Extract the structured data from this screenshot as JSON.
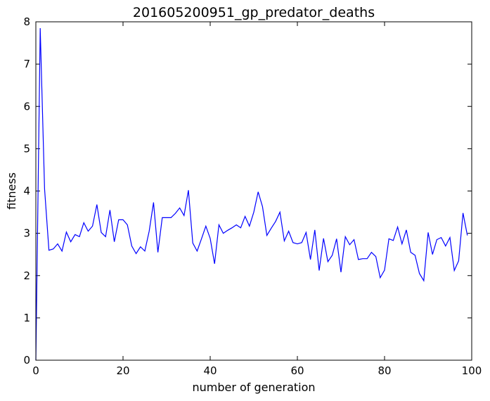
{
  "chart_data": {
    "type": "line",
    "title": "201605200951_gp_predator_deaths",
    "xlabel": "number of generation",
    "ylabel": "fitness",
    "xlim": [
      0,
      100
    ],
    "ylim": [
      0,
      8
    ],
    "xticks": [
      0,
      20,
      40,
      60,
      80,
      100
    ],
    "yticks": [
      0,
      1,
      2,
      3,
      4,
      5,
      6,
      7,
      8
    ],
    "grid": false,
    "series": [
      {
        "color": "#0000ff",
        "x": [
          0,
          1,
          2,
          3,
          4,
          5,
          6,
          7,
          8,
          9,
          10,
          11,
          12,
          13,
          14,
          15,
          16,
          17,
          18,
          19,
          20,
          21,
          22,
          23,
          24,
          25,
          26,
          27,
          28,
          29,
          30,
          31,
          32,
          33,
          34,
          35,
          36,
          37,
          38,
          39,
          40,
          41,
          42,
          43,
          44,
          45,
          46,
          47,
          48,
          49,
          50,
          51,
          52,
          53,
          54,
          55,
          56,
          57,
          58,
          59,
          60,
          61,
          62,
          63,
          64,
          65,
          66,
          67,
          68,
          69,
          70,
          71,
          72,
          73,
          74,
          75,
          76,
          77,
          78,
          79,
          80,
          81,
          82,
          83,
          84,
          85,
          86,
          87,
          88,
          89,
          90,
          91,
          92,
          93,
          94,
          95,
          96,
          97,
          98,
          99
        ],
        "values": [
          0.0,
          7.85,
          4.05,
          2.6,
          2.63,
          2.75,
          2.58,
          3.03,
          2.8,
          2.97,
          2.92,
          3.25,
          3.05,
          3.17,
          3.68,
          3.02,
          2.92,
          3.55,
          2.8,
          3.32,
          3.32,
          3.2,
          2.7,
          2.52,
          2.68,
          2.58,
          3.05,
          3.73,
          2.55,
          3.37,
          3.37,
          3.37,
          3.47,
          3.6,
          3.42,
          4.02,
          2.77,
          2.58,
          2.87,
          3.17,
          2.88,
          2.28,
          3.2,
          3.0,
          3.07,
          3.13,
          3.2,
          3.13,
          3.4,
          3.17,
          3.5,
          3.98,
          3.63,
          2.95,
          3.12,
          3.28,
          3.5,
          2.82,
          3.05,
          2.78,
          2.75,
          2.78,
          3.02,
          2.38,
          3.08,
          2.12,
          2.88,
          2.33,
          2.48,
          2.87,
          2.08,
          2.92,
          2.73,
          2.85,
          2.38,
          2.4,
          2.4,
          2.55,
          2.45,
          1.95,
          2.13,
          2.87,
          2.83,
          3.15,
          2.75,
          3.08,
          2.55,
          2.48,
          2.05,
          1.88,
          3.02,
          2.5,
          2.85,
          2.9,
          2.7,
          2.9,
          2.12,
          2.35,
          3.48,
          2.95
        ]
      }
    ]
  }
}
